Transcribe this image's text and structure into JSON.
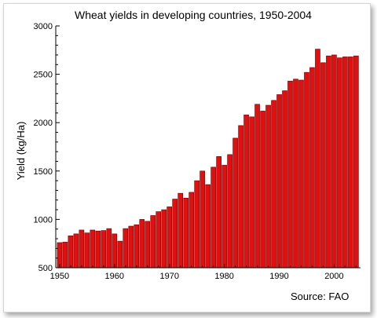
{
  "chart_data": {
    "type": "bar",
    "title": "Wheat yields in developing countries, 1950-2004",
    "ylabel": "Yield (kg/Ha)",
    "xlabel": "",
    "source": "Source:  FAO",
    "ylim": [
      500,
      3000
    ],
    "xlim": [
      1949.3,
      2004.8
    ],
    "yticks": [
      500,
      1000,
      1500,
      2000,
      2500,
      3000
    ],
    "xticks": [
      1950,
      1960,
      1970,
      1980,
      1990,
      2000
    ],
    "bar_color": "#e01010",
    "bar_edge_color": "#700000",
    "x": [
      1950,
      1951,
      1952,
      1953,
      1954,
      1955,
      1956,
      1957,
      1958,
      1959,
      1960,
      1961,
      1962,
      1963,
      1964,
      1965,
      1966,
      1967,
      1968,
      1969,
      1970,
      1971,
      1972,
      1973,
      1974,
      1975,
      1976,
      1977,
      1978,
      1979,
      1980,
      1981,
      1982,
      1983,
      1984,
      1985,
      1986,
      1987,
      1988,
      1989,
      1990,
      1991,
      1992,
      1993,
      1994,
      1995,
      1996,
      1997,
      1998,
      1999,
      2000,
      2001,
      2002,
      2003,
      2004
    ],
    "values": [
      760,
      765,
      830,
      850,
      890,
      860,
      890,
      880,
      885,
      905,
      850,
      775,
      905,
      930,
      945,
      1000,
      980,
      1040,
      1080,
      1100,
      1130,
      1210,
      1270,
      1220,
      1280,
      1400,
      1500,
      1360,
      1540,
      1650,
      1560,
      1670,
      1840,
      1970,
      2080,
      2060,
      2190,
      2120,
      2180,
      2230,
      2290,
      2330,
      2430,
      2450,
      2440,
      2520,
      2570,
      2760,
      2620,
      2690,
      2700,
      2670,
      2680,
      2680,
      2690
    ]
  }
}
